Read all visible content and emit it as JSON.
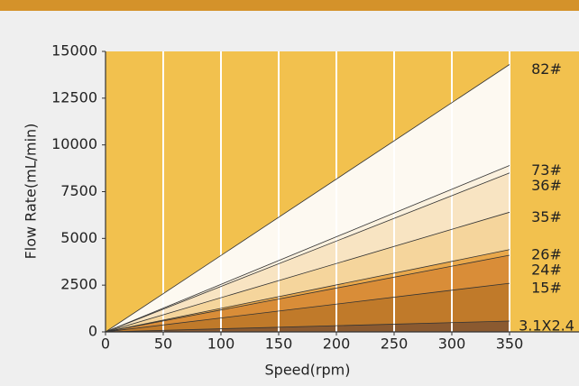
{
  "chart_data": {
    "type": "line",
    "x_label": "Speed(rpm)",
    "y_label": "Flow Rate(mL/min)",
    "x": [
      0,
      350
    ],
    "series": [
      {
        "name": "82#",
        "color": "#fdf9f1",
        "values": [
          0,
          14300
        ]
      },
      {
        "name": "73#",
        "color": "#fbf1de",
        "values": [
          0,
          8900
        ]
      },
      {
        "name": "36#",
        "color": "#f8e4c2",
        "values": [
          0,
          8500
        ]
      },
      {
        "name": "35#",
        "color": "#f5d59c",
        "values": [
          0,
          6400
        ]
      },
      {
        "name": "26#",
        "color": "#e9a84c",
        "values": [
          0,
          4400
        ]
      },
      {
        "name": "24#",
        "color": "#d98d38",
        "values": [
          0,
          4100
        ]
      },
      {
        "name": "15#",
        "color": "#c07a2a",
        "values": [
          0,
          2600
        ]
      },
      {
        "name": "3.1X2.4",
        "color": "#8b5a30",
        "values": [
          0,
          580
        ]
      }
    ],
    "xlim": [
      0,
      350
    ],
    "xticks": [
      0,
      50,
      100,
      150,
      200,
      250,
      300,
      350
    ],
    "ylim": [
      0,
      15000
    ],
    "yticks": [
      0,
      2500,
      5000,
      7500,
      10000,
      12500,
      15000
    ],
    "grid": true,
    "background_color": "#f2c14e"
  }
}
